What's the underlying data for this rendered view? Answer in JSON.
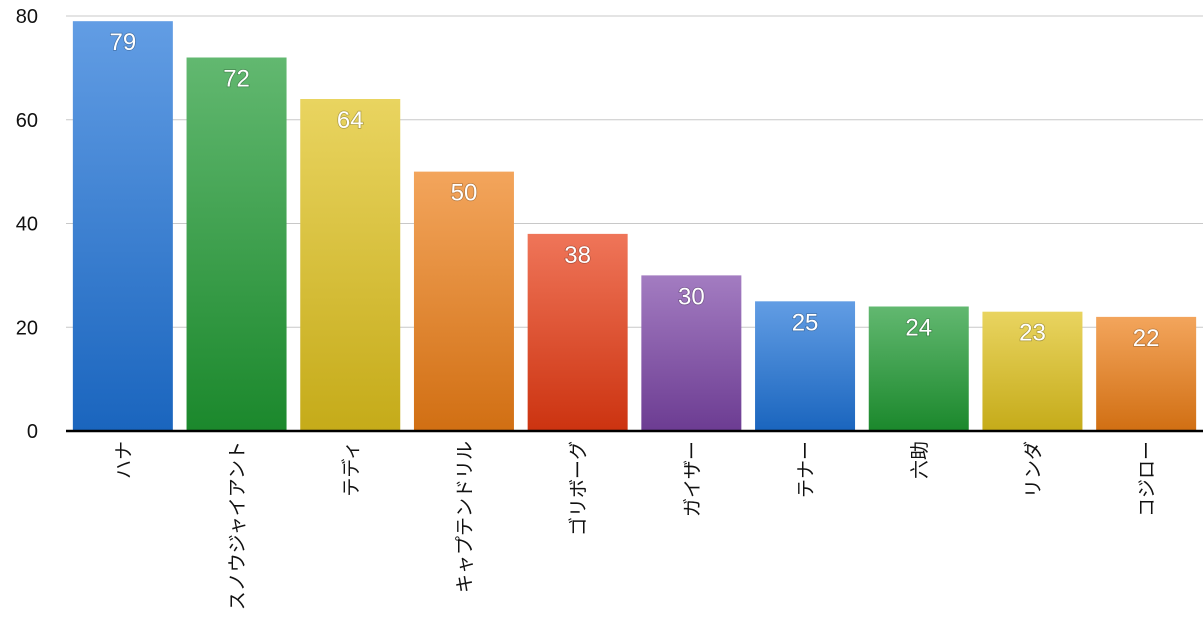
{
  "chart_data": {
    "type": "bar",
    "categories": [
      "ハナ",
      "スノウジャイアント",
      "テディ",
      "キャプテンドリル",
      "ゴリボーグ",
      "ガイザー",
      "テナー",
      "六助",
      "リンダ",
      "コジロー"
    ],
    "values": [
      79,
      72,
      64,
      50,
      38,
      30,
      25,
      24,
      23,
      22
    ],
    "colors": [
      "#1E73D8",
      "#1F9A32",
      "#E0C21C",
      "#EE7E16",
      "#E83A12",
      "#7B44A6",
      "#1E73D8",
      "#1F9A32",
      "#E0C21C",
      "#EE7E16"
    ],
    "ylim": [
      0,
      80
    ],
    "yticks": [
      0,
      20,
      40,
      60,
      80
    ],
    "grid": true,
    "data_labels": true
  }
}
